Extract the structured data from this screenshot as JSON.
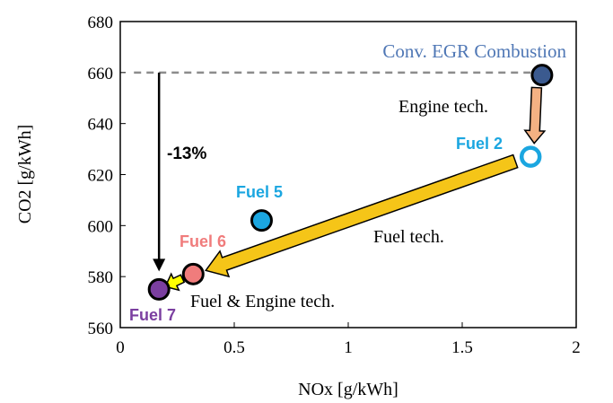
{
  "chart_data": {
    "type": "scatter",
    "xlabel": "NOx [g/kWh]",
    "ylabel": "CO2 [g/kWh]",
    "xlim": [
      0,
      2
    ],
    "ylim": [
      560,
      680
    ],
    "x_ticks": [
      "0",
      "0.5",
      "1",
      "1.5",
      "2"
    ],
    "y_ticks": [
      "560",
      "580",
      "600",
      "620",
      "640",
      "660",
      "680"
    ],
    "grid": false,
    "points": [
      {
        "label": "Conv. EGR Combustion",
        "x": 1.85,
        "y": 659,
        "color": "#3B5A8F",
        "filled": true
      },
      {
        "label": "Fuel 2",
        "x": 1.8,
        "y": 627,
        "color": "#1BA6E0",
        "filled": false
      },
      {
        "label": "Fuel 5",
        "x": 0.62,
        "y": 602,
        "color": "#1BA6E0",
        "filled": true
      },
      {
        "label": "Fuel 6",
        "x": 0.32,
        "y": 581,
        "color": "#F07C7C",
        "filled": true
      },
      {
        "label": "Fuel 7",
        "x": 0.17,
        "y": 575,
        "color": "#7B3FA0",
        "filled": true
      }
    ],
    "label_colors": {
      "Conv. EGR Combustion": "#4F77B5",
      "Fuel 2": "#1BA6E0",
      "Fuel 5": "#1BA6E0",
      "Fuel 6": "#F07C7C",
      "Fuel 7": "#7B3FA0"
    },
    "annotations": {
      "engine_tech": "Engine tech.",
      "fuel_tech": "Fuel tech.",
      "fuel_engine_tech": "Fuel & Engine tech.",
      "reduction": "-13%"
    },
    "reference_line_y": 660,
    "arrow_colors": {
      "engine": "#F4B183",
      "fuel": "#F5C518",
      "fuel_engine": "#FFFF00"
    }
  }
}
